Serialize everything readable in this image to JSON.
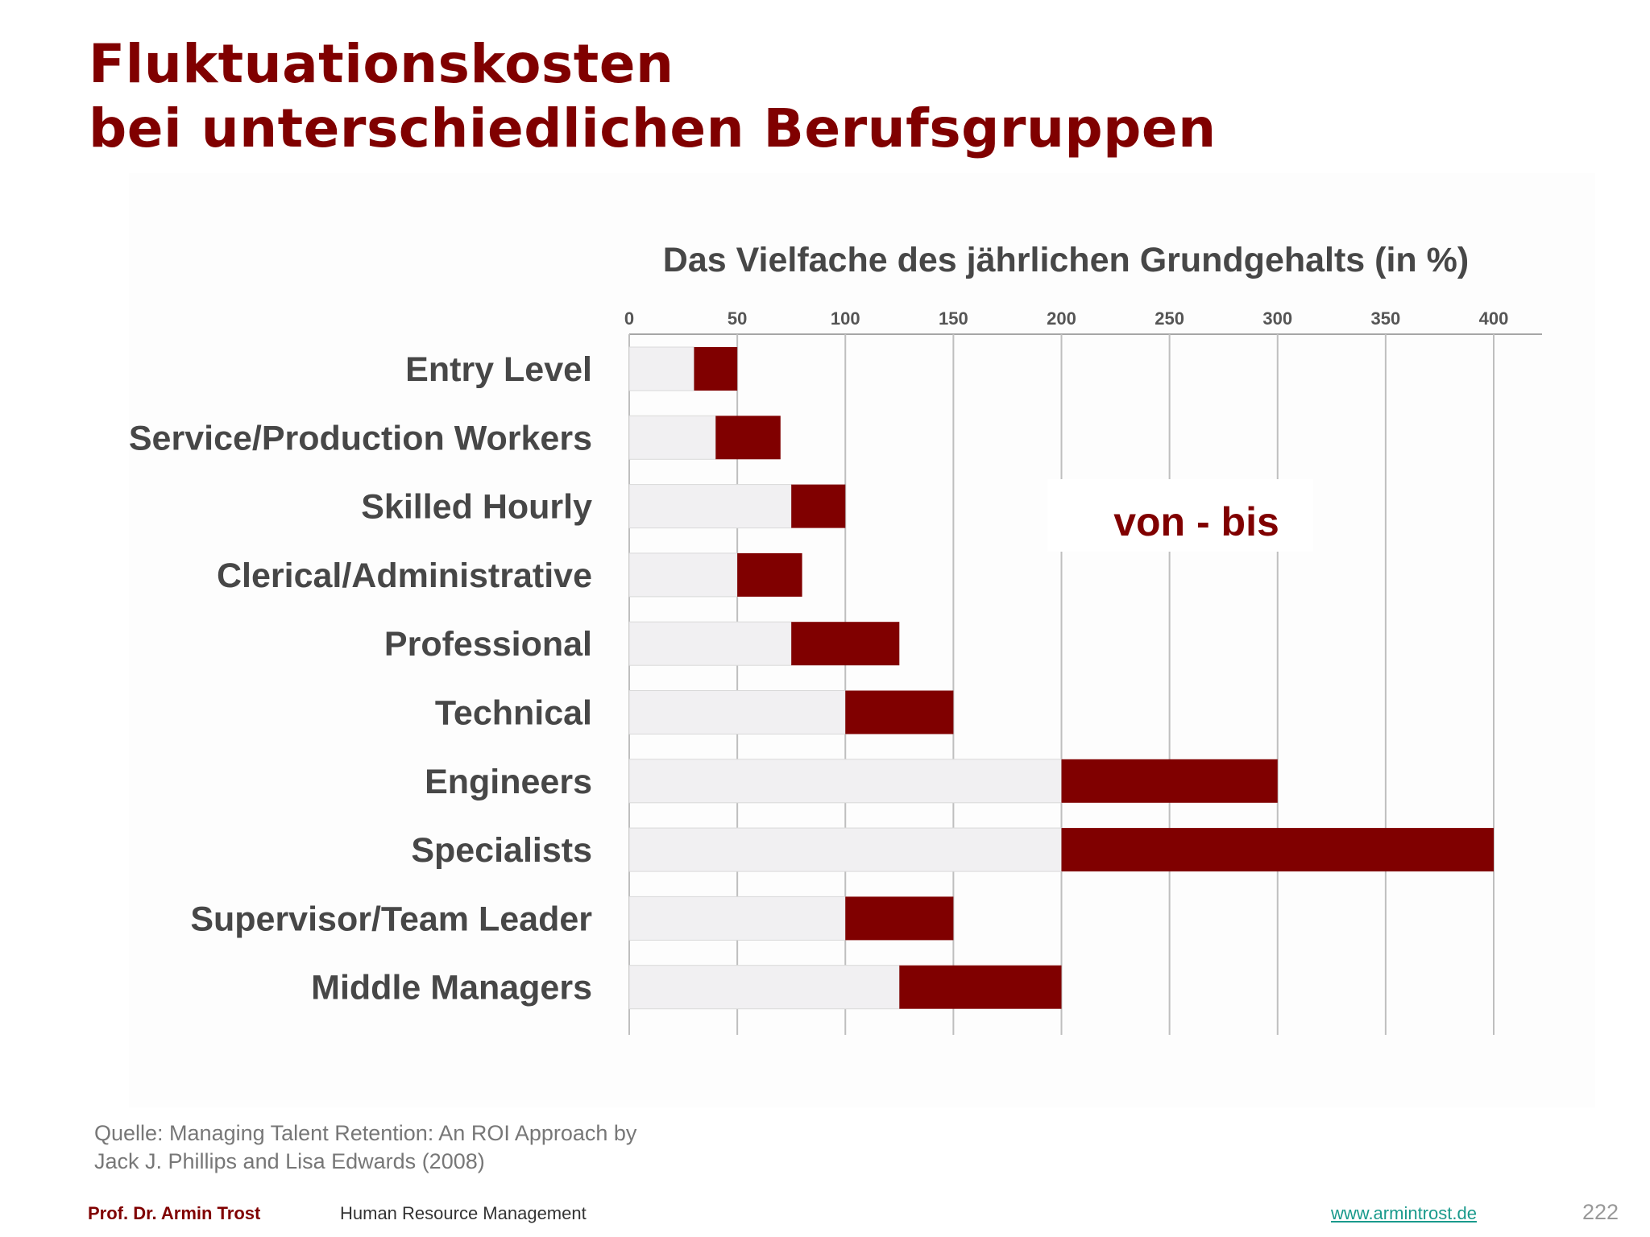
{
  "slide": {
    "title_line1": "Fluktuationskosten",
    "title_line2": "bei unterschiedlichen Berufsgruppen",
    "source_line1": "Quelle: Managing Talent Retention: An ROI Approach by",
    "source_line2": "Jack J. Phillips and Lisa Edwards (2008)",
    "footer_author": "Prof. Dr. Armin Trost",
    "footer_course": "Human Resource Management",
    "footer_link": "www.armintrost.de",
    "page_number": "222"
  },
  "colors": {
    "range": "#800000",
    "base": "#f1f0f2",
    "grid": "#bfbfbf",
    "title": "#800000"
  },
  "chart_data": {
    "type": "bar",
    "orientation": "horizontal",
    "title": "Das Vielfache des jährlichen Grundgehalts (in %)",
    "x_ticks": [
      0,
      50,
      100,
      150,
      200,
      250,
      300,
      350,
      400
    ],
    "xlim": [
      0,
      400
    ],
    "grid": true,
    "annotation": "von - bis",
    "categories": [
      "Entry Level",
      "Service/Production Workers",
      "Skilled Hourly",
      "Clerical/Administrative",
      "Professional",
      "Technical",
      "Engineers",
      "Specialists",
      "Supervisor/Team Leader",
      "Middle Managers"
    ],
    "series": [
      {
        "values": [
          30,
          40,
          75,
          50,
          75,
          100,
          200,
          200,
          100,
          125
        ]
      },
      {
        "values": [
          50,
          70,
          100,
          80,
          125,
          150,
          300,
          400,
          150,
          200
        ]
      }
    ]
  }
}
